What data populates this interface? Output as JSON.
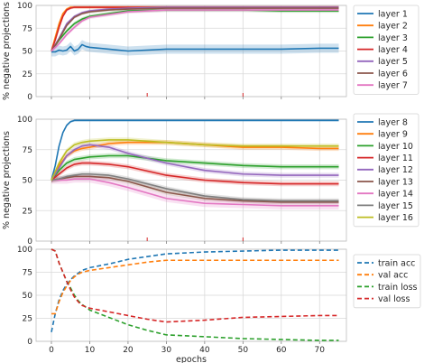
{
  "chart_data": [
    {
      "type": "line",
      "ylabel": "% negative projections",
      "xlim": [
        -4,
        77
      ],
      "ylim": [
        0,
        100
      ],
      "xticks": [
        0,
        10,
        20,
        30,
        40,
        50,
        60,
        70
      ],
      "yticks": [
        0,
        25,
        50,
        75,
        100
      ],
      "ytick_labels": [
        "0",
        "25",
        "50",
        "75",
        "100"
      ],
      "grid": true,
      "legend_position": "outside-right",
      "markers_x": [
        25,
        50
      ],
      "series": [
        {
          "name": "layer 1",
          "color": "#1f77b4",
          "band": 5,
          "x": [
            0,
            1,
            2,
            3,
            4,
            5,
            6,
            7,
            8,
            9,
            10,
            15,
            20,
            30,
            40,
            50,
            60,
            70,
            75
          ],
          "y": [
            49,
            49,
            51,
            50,
            51,
            55,
            50,
            52,
            57,
            55,
            54,
            52,
            50,
            52,
            52,
            52,
            52,
            53,
            53
          ]
        },
        {
          "name": "layer 2",
          "color": "#ff7f0e",
          "band": 1.5,
          "x": [
            0,
            1,
            2,
            3,
            4,
            5,
            6,
            7,
            8,
            10,
            15,
            20,
            30,
            40,
            50,
            60,
            70,
            75
          ],
          "y": [
            50,
            65,
            80,
            91,
            96,
            98,
            98,
            98,
            98,
            98,
            98,
            98,
            98,
            98,
            98,
            98,
            98,
            98
          ]
        },
        {
          "name": "layer 3",
          "color": "#2ca02c",
          "band": 2,
          "x": [
            0,
            2,
            4,
            6,
            8,
            10,
            15,
            20,
            30,
            40,
            50,
            60,
            70,
            75
          ],
          "y": [
            50,
            62,
            72,
            80,
            85,
            88,
            91,
            94,
            95,
            95,
            95,
            94,
            94,
            94
          ]
        },
        {
          "name": "layer 4",
          "color": "#d62728",
          "band": 1.5,
          "x": [
            0,
            1,
            2,
            3,
            4,
            5,
            6,
            7,
            8,
            10,
            15,
            20,
            30,
            40,
            50,
            60,
            70,
            75
          ],
          "y": [
            50,
            62,
            76,
            88,
            95,
            97,
            98,
            98,
            98,
            98,
            98,
            98,
            98,
            98,
            98,
            98,
            98,
            98
          ]
        },
        {
          "name": "layer 5",
          "color": "#9467bd",
          "band": 1.5,
          "x": [
            0,
            2,
            4,
            6,
            8,
            10,
            15,
            20,
            30,
            40,
            50,
            60,
            70,
            75
          ],
          "y": [
            50,
            64,
            80,
            88,
            92,
            94,
            96,
            97,
            98,
            98,
            98,
            98,
            98,
            98
          ]
        },
        {
          "name": "layer 6",
          "color": "#8c564b",
          "band": 1.5,
          "x": [
            0,
            2,
            4,
            6,
            8,
            10,
            15,
            20,
            30,
            40,
            50,
            60,
            70,
            75
          ],
          "y": [
            50,
            63,
            78,
            87,
            91,
            93,
            95,
            96,
            97,
            97,
            97,
            97,
            97,
            97
          ]
        },
        {
          "name": "layer 7",
          "color": "#e377c2",
          "band": 2,
          "x": [
            0,
            2,
            4,
            6,
            8,
            10,
            15,
            20,
            30,
            40,
            50,
            60,
            70,
            75
          ],
          "y": [
            50,
            58,
            68,
            76,
            83,
            87,
            90,
            93,
            95,
            95,
            95,
            95,
            95,
            95
          ]
        }
      ]
    },
    {
      "type": "line",
      "ylabel": "% negative projections",
      "xlim": [
        -4,
        77
      ],
      "ylim": [
        0,
        100
      ],
      "xticks": [
        0,
        10,
        20,
        30,
        40,
        50,
        60,
        70
      ],
      "yticks": [
        0,
        25,
        50,
        75,
        100
      ],
      "ytick_labels": [
        "0",
        "25",
        "50",
        "75",
        "100"
      ],
      "grid": true,
      "legend_position": "outside-right",
      "markers_x": [
        25,
        50
      ],
      "series": [
        {
          "name": "layer 8",
          "color": "#1f77b4",
          "band": 1,
          "x": [
            0,
            1,
            2,
            3,
            4,
            5,
            6,
            7,
            8,
            10,
            15,
            20,
            30,
            40,
            50,
            60,
            70,
            75
          ],
          "y": [
            50,
            62,
            78,
            89,
            95,
            98,
            99,
            99,
            99,
            99,
            99,
            99,
            99,
            99,
            99,
            99,
            99,
            99
          ]
        },
        {
          "name": "layer 9",
          "color": "#ff7f0e",
          "band": 2,
          "x": [
            0,
            2,
            4,
            6,
            8,
            10,
            15,
            20,
            30,
            40,
            50,
            60,
            70,
            75
          ],
          "y": [
            50,
            62,
            70,
            74,
            76,
            77,
            80,
            81,
            81,
            79,
            77,
            77,
            76,
            76
          ]
        },
        {
          "name": "layer 10",
          "color": "#2ca02c",
          "band": 2,
          "x": [
            0,
            2,
            4,
            6,
            8,
            10,
            15,
            20,
            30,
            40,
            50,
            60,
            70,
            75
          ],
          "y": [
            50,
            58,
            64,
            67,
            68,
            69,
            70,
            70,
            66,
            64,
            62,
            61,
            61,
            61
          ]
        },
        {
          "name": "layer 11",
          "color": "#d62728",
          "band": 2,
          "x": [
            0,
            2,
            4,
            6,
            8,
            10,
            15,
            20,
            30,
            40,
            50,
            60,
            70,
            75
          ],
          "y": [
            50,
            55,
            60,
            63,
            64,
            64,
            63,
            61,
            54,
            50,
            48,
            47,
            47,
            47
          ]
        },
        {
          "name": "layer 12",
          "color": "#9467bd",
          "band": 2,
          "x": [
            0,
            2,
            4,
            6,
            8,
            10,
            15,
            20,
            30,
            40,
            50,
            60,
            70,
            75
          ],
          "y": [
            50,
            60,
            70,
            75,
            78,
            79,
            77,
            72,
            64,
            58,
            55,
            54,
            54,
            54
          ]
        },
        {
          "name": "layer 13",
          "color": "#8c564b",
          "band": 2,
          "x": [
            0,
            2,
            4,
            6,
            8,
            10,
            15,
            20,
            30,
            40,
            50,
            60,
            70,
            75
          ],
          "y": [
            50,
            51,
            52,
            53,
            53,
            53,
            52,
            49,
            40,
            35,
            33,
            32,
            32,
            32
          ]
        },
        {
          "name": "layer 14",
          "color": "#e377c2",
          "band": 3,
          "x": [
            0,
            2,
            4,
            6,
            8,
            10,
            15,
            20,
            30,
            40,
            50,
            60,
            70,
            75
          ],
          "y": [
            50,
            50,
            50,
            51,
            51,
            51,
            48,
            44,
            35,
            31,
            30,
            29,
            29,
            29
          ]
        },
        {
          "name": "layer 15",
          "color": "#7f7f7f",
          "band": 2,
          "x": [
            0,
            2,
            4,
            6,
            8,
            10,
            15,
            20,
            30,
            40,
            50,
            60,
            70,
            75
          ],
          "y": [
            50,
            51,
            53,
            54,
            55,
            55,
            54,
            51,
            43,
            37,
            34,
            33,
            33,
            33
          ]
        },
        {
          "name": "layer 16",
          "color": "#bcbd22",
          "band": 2,
          "x": [
            0,
            2,
            4,
            6,
            8,
            10,
            15,
            20,
            30,
            40,
            50,
            60,
            70,
            75
          ],
          "y": [
            50,
            64,
            74,
            79,
            81,
            82,
            83,
            83,
            81,
            79,
            78,
            78,
            78,
            78
          ]
        }
      ]
    },
    {
      "type": "line",
      "xlabel": "epochs",
      "xlim": [
        -4,
        77
      ],
      "ylim": [
        0,
        100
      ],
      "xticks": [
        0,
        10,
        20,
        30,
        40,
        50,
        60,
        70
      ],
      "yticks": [
        0,
        25,
        50,
        75,
        100
      ],
      "ytick_labels": [
        "0",
        "25",
        "50",
        "75",
        "100"
      ],
      "xtick_labels": [
        "0",
        "10",
        "20",
        "30",
        "40",
        "50",
        "60",
        "70"
      ],
      "grid": true,
      "legend_position": "outside-right",
      "line_style": "dashed",
      "series": [
        {
          "name": "train acc",
          "color": "#1f77b4",
          "x": [
            0,
            1,
            2,
            3,
            4,
            5,
            6,
            7,
            8,
            10,
            15,
            20,
            25,
            30,
            40,
            50,
            60,
            70,
            75
          ],
          "y": [
            10,
            30,
            45,
            55,
            62,
            67,
            71,
            74,
            77,
            80,
            84,
            89,
            92,
            95,
            97,
            98,
            99,
            99,
            99
          ]
        },
        {
          "name": "val acc",
          "color": "#ff7f0e",
          "x": [
            0,
            1,
            2,
            3,
            4,
            5,
            6,
            7,
            8,
            10,
            15,
            20,
            25,
            30,
            40,
            50,
            60,
            70,
            75
          ],
          "y": [
            30,
            30,
            43,
            53,
            60,
            66,
            70,
            73,
            75,
            77,
            80,
            83,
            86,
            88,
            88,
            88,
            88,
            88,
            88
          ]
        },
        {
          "name": "train loss",
          "color": "#2ca02c",
          "x": [
            0,
            1,
            2,
            3,
            4,
            5,
            6,
            7,
            8,
            10,
            15,
            20,
            25,
            30,
            40,
            50,
            60,
            70,
            75
          ],
          "y": [
            100,
            98,
            85,
            75,
            65,
            58,
            50,
            44,
            40,
            34,
            26,
            18,
            12,
            7,
            5,
            3,
            2,
            1,
            1
          ]
        },
        {
          "name": "val loss",
          "color": "#d62728",
          "x": [
            0,
            1,
            2,
            3,
            4,
            5,
            6,
            7,
            8,
            10,
            15,
            20,
            25,
            30,
            40,
            50,
            60,
            70,
            75
          ],
          "y": [
            100,
            98,
            85,
            75,
            65,
            56,
            48,
            43,
            39,
            36,
            32,
            28,
            24,
            21,
            23,
            26,
            27,
            28,
            28
          ]
        }
      ]
    }
  ]
}
